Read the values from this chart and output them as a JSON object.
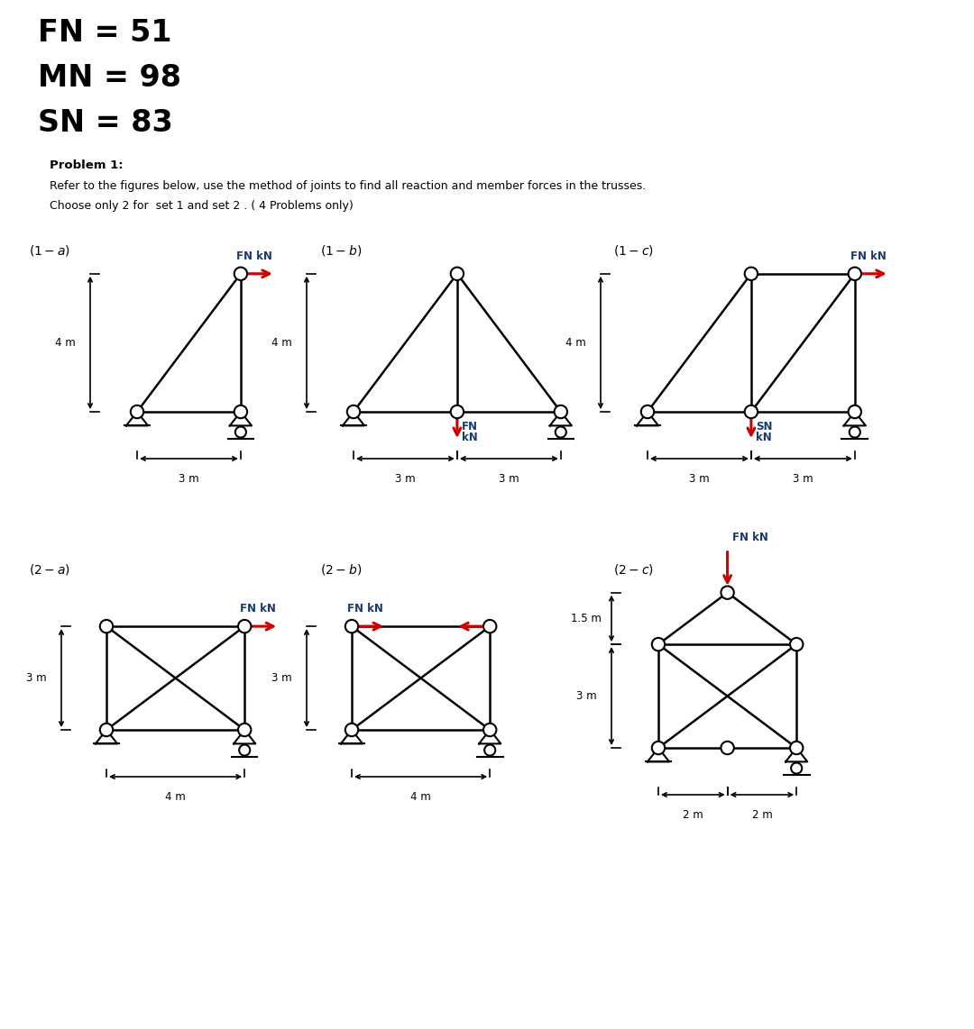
{
  "title_lines": [
    "FN = 51",
    "MN = 98",
    "SN = 83"
  ],
  "problem_title": "Problem 1:",
  "problem_desc1": "Refer to the figures below, use the method of joints to find all reaction and member forces in the trusses.",
  "problem_desc2": "Choose only 2 for  set 1 and set 2 . ( 4 Problems only)",
  "bg_color": "#ffffff",
  "line_color": "#000000",
  "arrow_color": "#cc0000",
  "node_color": "#ffffff",
  "node_edge": "#000000",
  "dim_color": "#000000",
  "label_color": "#1a3a6b",
  "FN": 51,
  "MN": 98,
  "SN": 83
}
